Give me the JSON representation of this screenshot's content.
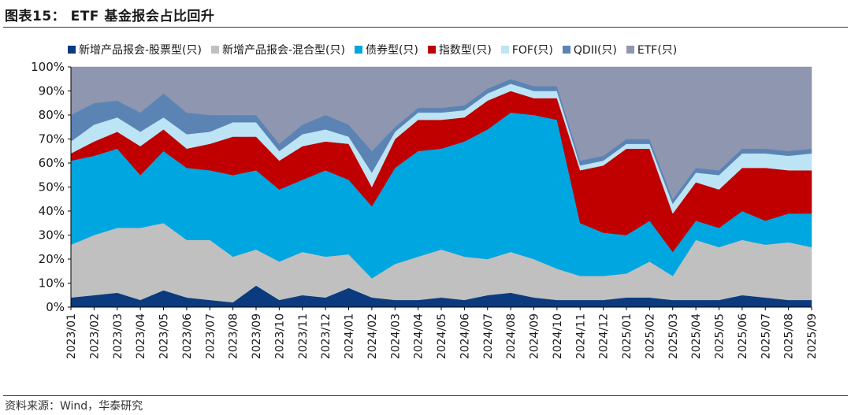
{
  "header": {
    "title": "图表15：  ETF 基金报会占比回升"
  },
  "footer": {
    "source": "资料来源：Wind，华泰研究"
  },
  "chart_data": {
    "type": "area",
    "stacked": true,
    "percent": true,
    "title": "",
    "xlabel": "",
    "ylabel": "",
    "ylim": [
      0,
      100
    ],
    "yticks": [
      "0%",
      "10%",
      "20%",
      "30%",
      "40%",
      "50%",
      "60%",
      "70%",
      "80%",
      "90%",
      "100%"
    ],
    "grid": false,
    "legend_position": "top",
    "categories": [
      "2023/01",
      "2023/02",
      "2023/03",
      "2023/04",
      "2023/05",
      "2023/06",
      "2023/07",
      "2023/08",
      "2023/09",
      "2023/10",
      "2023/11",
      "2023/12",
      "2024/01",
      "2024/02",
      "2024/03",
      "2024/04",
      "2024/05",
      "2024/06",
      "2024/07",
      "2024/08",
      "2024/09",
      "2024/10",
      "2024/11",
      "2024/12",
      "2025/01",
      "2025/02",
      "2025/03",
      "2025/04",
      "2025/05",
      "2025/06",
      "2025/07",
      "2025/08",
      "2025/09"
    ],
    "series": [
      {
        "name": "新增产品报会-股票型(只)",
        "color": "#0b3a7e",
        "values": [
          4,
          5,
          6,
          3,
          7,
          4,
          3,
          2,
          9,
          3,
          5,
          4,
          8,
          4,
          3,
          3,
          4,
          3,
          5,
          6,
          4,
          3,
          3,
          3,
          4,
          4,
          3,
          3,
          3,
          5,
          4,
          3,
          3
        ]
      },
      {
        "name": "新增产品报会-混合型(只)",
        "color": "#c0c0c0",
        "values": [
          22,
          25,
          27,
          30,
          28,
          24,
          25,
          19,
          15,
          16,
          18,
          17,
          14,
          8,
          15,
          18,
          20,
          18,
          15,
          17,
          16,
          13,
          10,
          10,
          10,
          15,
          10,
          25,
          22,
          23,
          22,
          24,
          22
        ]
      },
      {
        "name": "债券型(只)",
        "color": "#00a6e0",
        "values": [
          35,
          33,
          33,
          22,
          30,
          30,
          29,
          34,
          33,
          30,
          30,
          36,
          31,
          30,
          40,
          44,
          42,
          48,
          54,
          58,
          60,
          62,
          22,
          18,
          16,
          17,
          10,
          8,
          8,
          12,
          10,
          12,
          14
        ]
      },
      {
        "name": "指数型(只)",
        "color": "#c00000",
        "values": [
          3,
          6,
          7,
          12,
          9,
          8,
          11,
          16,
          14,
          12,
          14,
          12,
          15,
          8,
          12,
          13,
          12,
          10,
          12,
          9,
          7,
          9,
          22,
          28,
          36,
          30,
          16,
          16,
          16,
          18,
          22,
          18,
          18
        ]
      },
      {
        "name": "FOF(只)",
        "color": "#bde4f4",
        "values": [
          5,
          7,
          6,
          6,
          5,
          6,
          5,
          6,
          6,
          4,
          5,
          5,
          3,
          6,
          3,
          3,
          3,
          3,
          3,
          3,
          3,
          3,
          2,
          2,
          2,
          2,
          4,
          4,
          6,
          6,
          6,
          6,
          7
        ]
      },
      {
        "name": "QDII(只)",
        "color": "#5b84b5",
        "values": [
          11,
          9,
          7,
          8,
          10,
          9,
          7,
          3,
          3,
          3,
          4,
          6,
          5,
          9,
          2,
          2,
          2,
          2,
          2,
          2,
          2,
          2,
          2,
          2,
          2,
          2,
          2,
          2,
          2,
          2,
          2,
          2,
          2
        ]
      },
      {
        "name": "ETF(只)",
        "color": "#8e96b0",
        "values": [
          20,
          15,
          14,
          19,
          11,
          19,
          20,
          20,
          20,
          32,
          24,
          20,
          24,
          35,
          25,
          17,
          17,
          16,
          9,
          5,
          8,
          8,
          39,
          37,
          30,
          30,
          55,
          42,
          43,
          34,
          34,
          35,
          34
        ]
      }
    ]
  }
}
